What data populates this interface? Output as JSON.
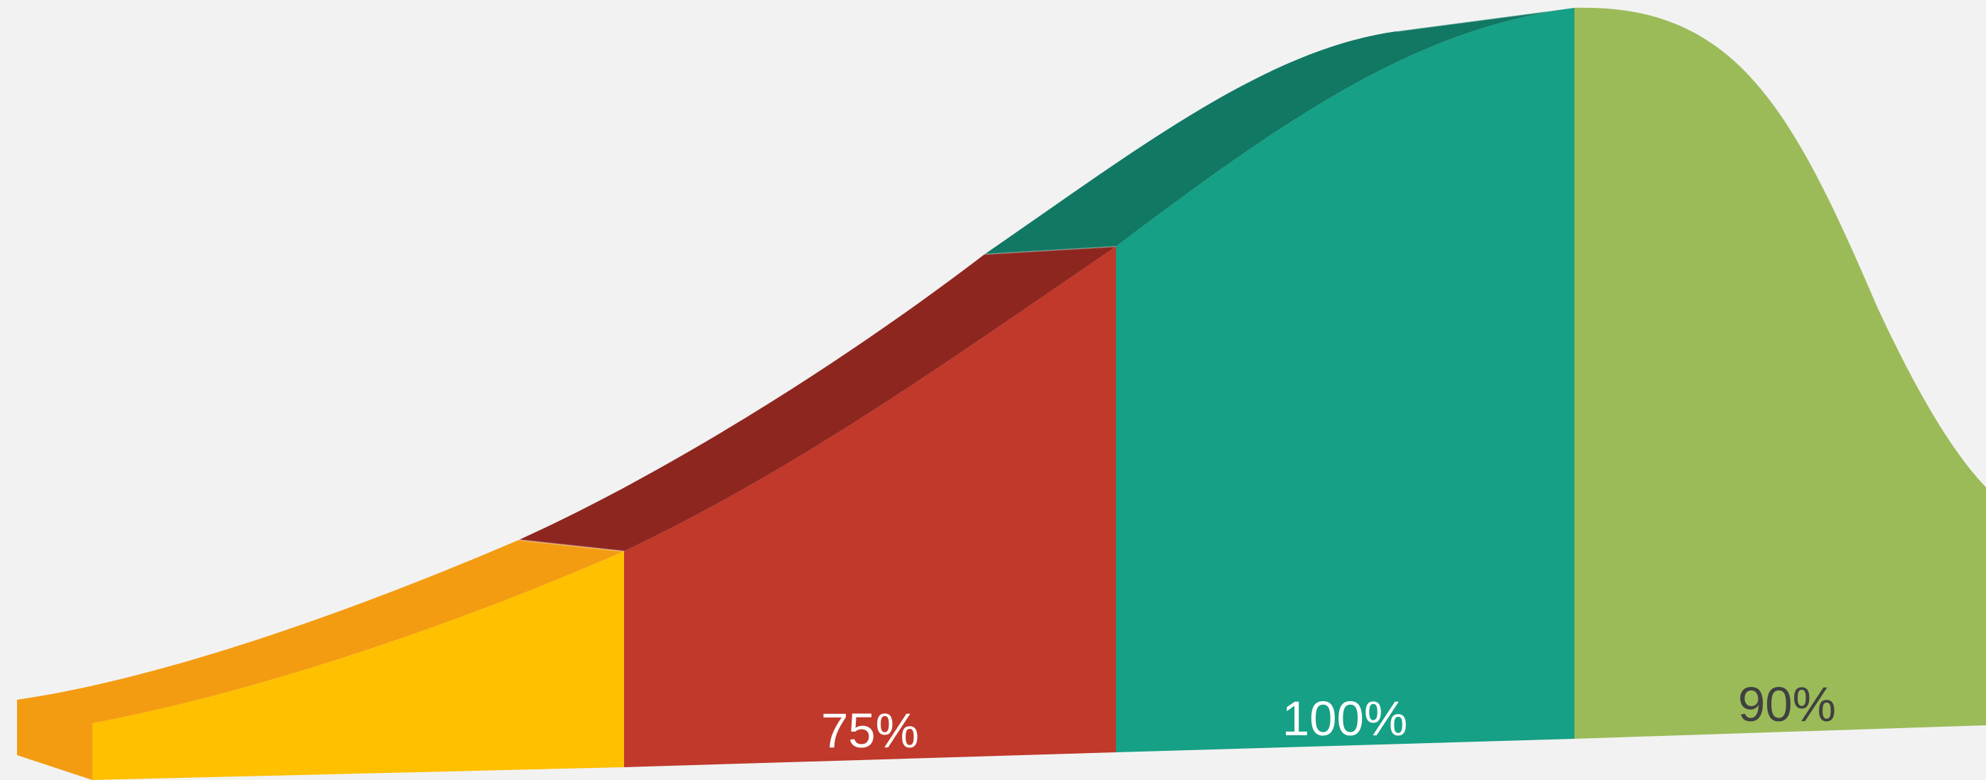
{
  "chart_data": {
    "type": "area",
    "style": "3d-ribbon-bell-curve",
    "title": "",
    "xlabel": "",
    "ylabel": "",
    "grid": false,
    "legend": "none",
    "segments": [
      {
        "label": "",
        "value": null,
        "color": "#ffc000",
        "shade": "#f39c12"
      },
      {
        "label": "75%",
        "value": 75,
        "color": "#c0392b",
        "shade": "#8e2620"
      },
      {
        "label": "100%",
        "value": 100,
        "color": "#16a085",
        "shade": "#117864"
      },
      {
        "label": "90%",
        "value": 90,
        "color": "#9bbb59",
        "shade": "#7a9a3e"
      }
    ],
    "label_colors": {
      "light": "#ffffff",
      "dark": "#404040"
    }
  }
}
